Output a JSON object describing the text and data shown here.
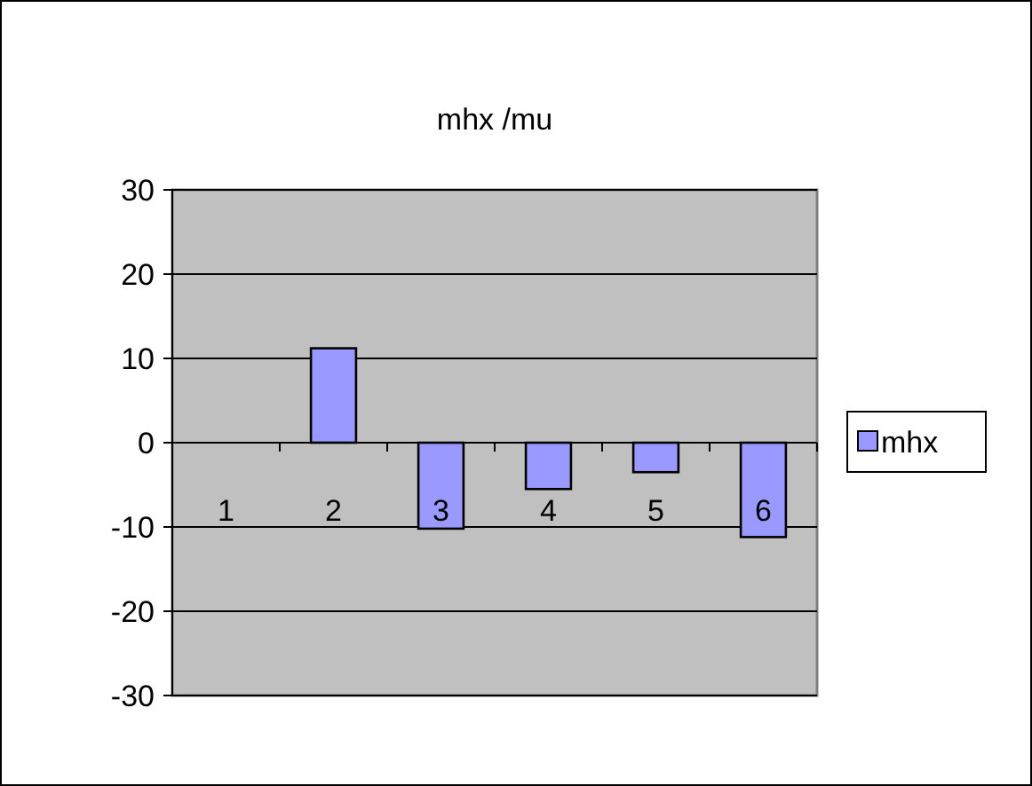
{
  "chart_data": {
    "type": "bar",
    "title": "mhx /mu",
    "categories": [
      "1",
      "2",
      "3",
      "4",
      "5",
      "6"
    ],
    "series": [
      {
        "name": "mhx",
        "color": "#9999ff",
        "values": [
          0,
          11.2,
          -10.2,
          -5.5,
          -3.5,
          -11.2
        ]
      }
    ],
    "ylim": [
      -30,
      30
    ],
    "yticks": [
      -30,
      -20,
      -10,
      0,
      10,
      20,
      30
    ],
    "grid": "y",
    "legend": "right"
  }
}
